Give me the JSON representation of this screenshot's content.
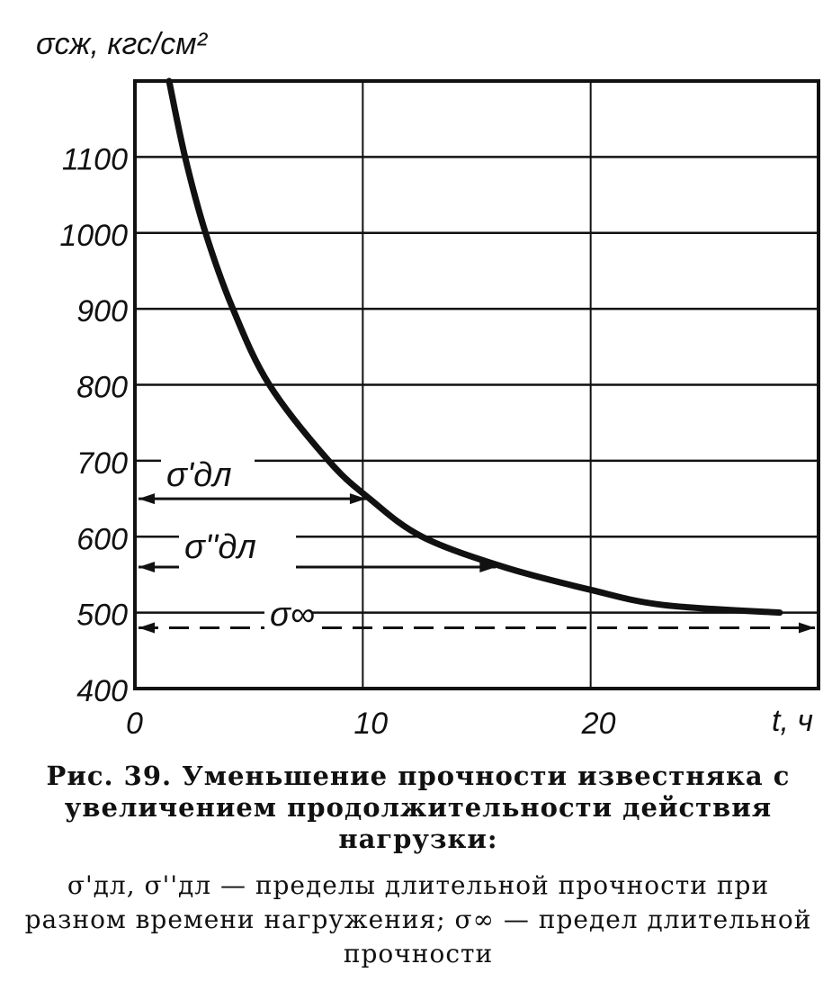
{
  "chart_data": {
    "type": "line",
    "ylabel": "σсж, кгс/см²",
    "xlabel": "t, ч",
    "xlim": [
      0,
      30
    ],
    "ylim": [
      400,
      1200
    ],
    "xticks": [
      0,
      10,
      20
    ],
    "yticks": [
      400,
      500,
      600,
      700,
      800,
      900,
      1000,
      1100
    ],
    "grid": true,
    "series": [
      {
        "x": [
          1.5,
          2.2,
          3.1,
          4.3,
          5.9,
          8.5,
          10.3,
          12.6,
          16.2,
          20,
          23.2,
          28.3
        ],
        "y": [
          1200,
          1100,
          1000,
          900,
          800,
          700,
          650,
          600,
          560,
          530,
          510,
          500
        ]
      }
    ],
    "annotations": [
      {
        "label": "σ'дл",
        "y": 650,
        "x_from": 0,
        "x_to": 10.3,
        "style": "solid-arrow"
      },
      {
        "label": "σ''дл",
        "y": 560,
        "x_from": 0,
        "x_to": 16,
        "style": "solid-arrow"
      },
      {
        "label": "σ∞",
        "y": 480,
        "x_from": 0,
        "x_to": 30,
        "style": "dashed-arrow"
      }
    ]
  },
  "caption": {
    "title": "Рис. 39. Уменьшение прочности известняка с увеличением продолжительности действия нагрузки:",
    "note": "σ'дл, σ''дл — пределы длительной прочности при разном времени нагружения; σ∞ — предел длительной прочности"
  },
  "colors": {
    "ink": "#111111",
    "background": "#ffffff"
  }
}
